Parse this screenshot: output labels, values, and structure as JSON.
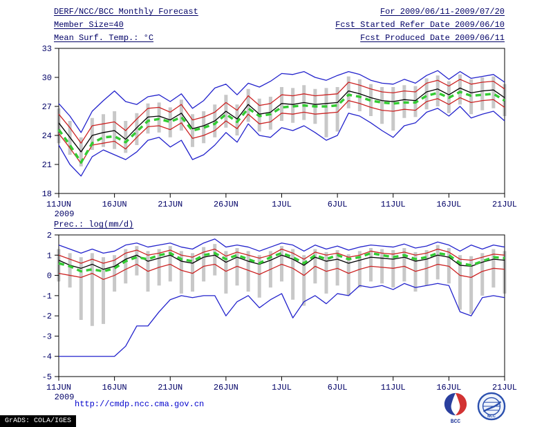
{
  "header": {
    "title": "DERF/NCC/BCC Monthly Forecast",
    "for_range": "For 2009/06/11-2009/07/20",
    "member_size": "Member Size=40",
    "ref_date": "Fcst Started Refer Date 2009/06/10",
    "produced_date": "Fcst Produced Date 2009/06/11"
  },
  "footer": {
    "url": "http://cmdp.ncc.cma.gov.cn",
    "grads_credit": "GrADS: COLA/IGES"
  },
  "logos": {
    "bcc_label": "BCC",
    "ncc_label": "NCC"
  },
  "colors": {
    "text": "#000066",
    "frame": "#000000",
    "envelope_blue": "#2222cc",
    "band_red": "#cc2222",
    "mean_black": "#000000",
    "reference_green": "#33cc33",
    "spread_gray": "#c8c8c8",
    "url_blue": "#0000cc"
  },
  "chart_data": [
    {
      "type": "line",
      "title": "Mean Surf. Temp.: °C",
      "ylim": [
        18,
        33
      ],
      "yticks": [
        18,
        21,
        24,
        27,
        30,
        33
      ],
      "n_points": 41,
      "xtick_indices": [
        0,
        5,
        10,
        15,
        20,
        25,
        30,
        35,
        40
      ],
      "xticklabels": [
        "11JUN",
        "16JUN",
        "21JUN",
        "26JUN",
        "1JUL",
        "6JUL",
        "11JUL",
        "16JUL",
        "21JUL"
      ],
      "x_year_label": "2009",
      "grid": false,
      "legend": "none",
      "bars": {
        "name": "ensemble-spread",
        "color": "#c8c8c8",
        "low": [
          23.2,
          22.0,
          20.8,
          22.5,
          22.8,
          22.6,
          22.2,
          23.0,
          24.2,
          24.3,
          23.8,
          24.5,
          22.8,
          23.2,
          23.8,
          24.8,
          24.0,
          25.4,
          24.4,
          24.6,
          25.5,
          25.3,
          25.6,
          25.2,
          23.8,
          24.4,
          26.8,
          26.5,
          26.0,
          25.2,
          24.5,
          25.8,
          25.9,
          26.7,
          27.0,
          26.3,
          27.2,
          26.2,
          26.6,
          26.8,
          26.0
        ],
        "high": [
          26.8,
          25.5,
          23.8,
          25.8,
          26.2,
          26.5,
          25.5,
          26.3,
          27.3,
          27.4,
          26.9,
          27.7,
          26.2,
          26.5,
          27.2,
          28.2,
          27.2,
          28.8,
          27.8,
          28.0,
          29.0,
          28.9,
          29.2,
          28.8,
          28.9,
          29.0,
          30.1,
          29.8,
          29.3,
          29.0,
          29.0,
          29.2,
          29.1,
          29.9,
          30.2,
          29.6,
          30.3,
          29.8,
          30.0,
          30.1,
          29.3
        ]
      },
      "series": [
        {
          "name": "upper-envelope",
          "color": "#2222cc",
          "width": 1.3,
          "values": [
            27.3,
            26.0,
            24.3,
            26.5,
            27.6,
            28.6,
            27.5,
            27.2,
            28.0,
            28.2,
            27.5,
            28.3,
            26.8,
            27.6,
            28.9,
            29.3,
            28.2,
            29.4,
            29.0,
            29.6,
            30.4,
            30.3,
            30.6,
            30.0,
            29.7,
            30.2,
            30.6,
            30.3,
            29.7,
            29.4,
            29.3,
            29.8,
            29.4,
            30.2,
            30.7,
            29.8,
            30.6,
            29.9,
            30.1,
            30.3,
            29.5
          ]
        },
        {
          "name": "lower-envelope",
          "color": "#2222cc",
          "width": 1.3,
          "values": [
            23.0,
            21.0,
            19.8,
            21.8,
            22.5,
            22.0,
            21.5,
            22.3,
            23.5,
            23.8,
            22.8,
            23.5,
            21.5,
            22.0,
            23.0,
            24.3,
            23.3,
            25.2,
            24.0,
            23.8,
            24.8,
            24.5,
            25.0,
            24.3,
            23.5,
            24.0,
            26.3,
            26.0,
            25.3,
            24.5,
            23.8,
            25.0,
            25.3,
            26.4,
            26.8,
            26.0,
            27.0,
            25.8,
            26.2,
            26.5,
            25.5
          ]
        },
        {
          "name": "upper-band",
          "color": "#cc2222",
          "width": 1.3,
          "values": [
            26.2,
            24.8,
            23.2,
            25.0,
            25.2,
            25.4,
            24.5,
            25.7,
            26.8,
            26.9,
            26.4,
            27.2,
            25.6,
            25.9,
            26.4,
            27.4,
            26.6,
            28.1,
            27.1,
            27.3,
            28.2,
            28.1,
            28.3,
            28.1,
            28.2,
            28.3,
            29.5,
            29.2,
            28.8,
            28.5,
            28.4,
            28.6,
            28.5,
            29.4,
            29.7,
            29.1,
            29.8,
            29.3,
            29.5,
            29.6,
            28.8
          ]
        },
        {
          "name": "lower-band",
          "color": "#cc2222",
          "width": 1.3,
          "values": [
            24.2,
            22.7,
            21.1,
            23.0,
            23.2,
            23.4,
            22.6,
            23.8,
            24.9,
            25.0,
            24.6,
            25.3,
            23.7,
            24.0,
            24.5,
            25.5,
            24.7,
            26.2,
            25.2,
            25.4,
            26.3,
            26.2,
            26.4,
            26.2,
            26.3,
            26.4,
            27.6,
            27.3,
            26.9,
            26.6,
            26.5,
            26.7,
            26.6,
            27.5,
            27.8,
            27.2,
            27.9,
            27.4,
            27.6,
            27.7,
            26.9
          ]
        },
        {
          "name": "ensemble-mean",
          "color": "#000000",
          "width": 1.3,
          "values": [
            25.3,
            23.8,
            22.3,
            24.0,
            24.3,
            24.5,
            23.6,
            24.8,
            25.9,
            26.0,
            25.6,
            26.3,
            24.7,
            25.0,
            25.5,
            26.5,
            25.7,
            27.2,
            26.2,
            26.4,
            27.3,
            27.2,
            27.4,
            27.2,
            27.3,
            27.4,
            28.6,
            28.3,
            27.9,
            27.6,
            27.5,
            27.7,
            27.6,
            28.5,
            28.8,
            28.2,
            28.9,
            28.4,
            28.6,
            28.7,
            27.9
          ]
        },
        {
          "name": "reference-dashed",
          "color": "#33cc33",
          "width": 3.5,
          "dash": "8 6",
          "values": [
            24.6,
            23.0,
            21.2,
            23.2,
            23.8,
            23.9,
            23.3,
            24.4,
            25.5,
            25.7,
            25.4,
            25.9,
            24.5,
            24.8,
            25.2,
            26.2,
            25.4,
            26.8,
            26.0,
            26.2,
            26.9,
            27.0,
            27.1,
            27.0,
            27.0,
            27.1,
            28.2,
            28.0,
            27.6,
            27.4,
            27.3,
            27.4,
            27.4,
            28.1,
            28.4,
            27.9,
            28.5,
            28.1,
            28.2,
            28.3,
            27.6
          ]
        }
      ]
    },
    {
      "type": "line",
      "title": "Prec.: log(mm/d)",
      "ylim": [
        -5,
        2
      ],
      "yticks": [
        -5,
        -4,
        -3,
        -2,
        -1,
        0,
        1,
        2
      ],
      "n_points": 41,
      "xtick_indices": [
        0,
        5,
        10,
        15,
        20,
        25,
        30,
        35,
        40
      ],
      "xticklabels": [
        "11JUN",
        "16JUN",
        "21JUN",
        "26JUN",
        "1JUL",
        "6JUL",
        "11JUL",
        "16JUL",
        "21JUL"
      ],
      "x_year_label": "2009",
      "grid": false,
      "legend": "none",
      "bars": {
        "name": "ensemble-spread",
        "color": "#c8c8c8",
        "low": [
          -0.3,
          -0.6,
          -2.2,
          -2.5,
          -2.4,
          -0.8,
          -0.4,
          0.0,
          -0.8,
          -0.5,
          -0.3,
          -0.9,
          -0.8,
          -0.3,
          0.0,
          -0.9,
          -0.5,
          -0.8,
          -1.1,
          -0.6,
          -0.3,
          -1.2,
          -1.5,
          -0.4,
          -0.9,
          -0.5,
          -1.0,
          -0.6,
          -0.3,
          -0.4,
          -0.6,
          -0.3,
          -0.8,
          -0.5,
          -0.2,
          -0.4,
          -1.7,
          -1.9,
          -1.0,
          -0.6,
          -0.9
        ],
        "high": [
          1.3,
          1.1,
          0.9,
          1.1,
          0.9,
          1.0,
          1.3,
          1.45,
          1.2,
          1.3,
          1.45,
          1.2,
          1.1,
          1.4,
          1.55,
          1.2,
          1.35,
          1.2,
          1.0,
          1.2,
          1.45,
          1.3,
          1.0,
          1.3,
          1.15,
          1.25,
          1.05,
          1.2,
          1.35,
          1.3,
          1.25,
          1.35,
          1.15,
          1.25,
          1.5,
          1.35,
          1.0,
          0.95,
          1.1,
          1.3,
          1.2
        ]
      },
      "series": [
        {
          "name": "upper-envelope",
          "color": "#2222cc",
          "width": 1.3,
          "values": [
            1.5,
            1.3,
            1.1,
            1.3,
            1.1,
            1.2,
            1.5,
            1.6,
            1.4,
            1.5,
            1.6,
            1.4,
            1.3,
            1.6,
            1.8,
            1.4,
            1.5,
            1.4,
            1.2,
            1.4,
            1.6,
            1.5,
            1.2,
            1.5,
            1.3,
            1.45,
            1.25,
            1.4,
            1.5,
            1.45,
            1.4,
            1.55,
            1.35,
            1.45,
            1.65,
            1.5,
            1.2,
            1.5,
            1.3,
            1.5,
            1.4
          ]
        },
        {
          "name": "lower-envelope",
          "color": "#2222cc",
          "width": 1.3,
          "values": [
            -4.0,
            -4.0,
            -4.0,
            -4.0,
            -4.0,
            -4.0,
            -3.5,
            -2.5,
            -2.5,
            -1.8,
            -1.2,
            -1.0,
            -1.1,
            -1.0,
            -1.0,
            -2.0,
            -1.3,
            -1.0,
            -1.6,
            -1.2,
            -0.9,
            -2.1,
            -1.3,
            -1.0,
            -1.4,
            -0.9,
            -1.0,
            -0.5,
            -0.6,
            -0.5,
            -0.7,
            -0.4,
            -0.6,
            -0.5,
            -0.4,
            -0.5,
            -1.8,
            -2.0,
            -1.1,
            -1.0,
            -1.1
          ]
        },
        {
          "name": "upper-band",
          "color": "#cc2222",
          "width": 1.3,
          "values": [
            1.0,
            0.8,
            0.6,
            0.8,
            0.6,
            0.75,
            1.1,
            1.25,
            1.0,
            1.1,
            1.25,
            1.0,
            0.9,
            1.15,
            1.3,
            0.95,
            1.15,
            1.0,
            0.85,
            1.0,
            1.3,
            1.1,
            0.8,
            1.15,
            1.0,
            1.1,
            0.9,
            1.0,
            1.2,
            1.1,
            1.05,
            1.15,
            1.0,
            1.1,
            1.3,
            1.15,
            0.8,
            0.75,
            0.9,
            1.05,
            1.0
          ]
        },
        {
          "name": "lower-band",
          "color": "#cc2222",
          "width": 1.3,
          "values": [
            0.1,
            0.0,
            -0.1,
            0.1,
            -0.2,
            0.0,
            0.3,
            0.55,
            0.2,
            0.4,
            0.55,
            0.25,
            0.1,
            0.45,
            0.55,
            0.2,
            0.45,
            0.25,
            0.05,
            0.3,
            0.55,
            0.35,
            0.0,
            0.45,
            0.2,
            0.35,
            0.1,
            0.3,
            0.45,
            0.4,
            0.35,
            0.45,
            0.2,
            0.35,
            0.55,
            0.45,
            0.0,
            -0.1,
            0.2,
            0.35,
            0.3
          ]
        },
        {
          "name": "ensemble-mean",
          "color": "#000000",
          "width": 1.3,
          "values": [
            0.75,
            0.5,
            0.35,
            0.55,
            0.3,
            0.45,
            0.8,
            1.0,
            0.7,
            0.85,
            1.0,
            0.7,
            0.6,
            0.9,
            1.0,
            0.65,
            0.9,
            0.7,
            0.55,
            0.75,
            1.0,
            0.8,
            0.5,
            0.9,
            0.7,
            0.8,
            0.6,
            0.75,
            0.9,
            0.85,
            0.8,
            0.9,
            0.7,
            0.8,
            1.0,
            0.9,
            0.5,
            0.45,
            0.65,
            0.8,
            0.75
          ]
        },
        {
          "name": "reference-dashed",
          "color": "#33cc33",
          "width": 3.5,
          "dash": "8 6",
          "values": [
            0.6,
            0.45,
            0.2,
            0.3,
            0.2,
            0.35,
            0.7,
            0.9,
            0.8,
            1.0,
            1.1,
            0.8,
            0.7,
            1.0,
            1.1,
            0.8,
            1.0,
            0.8,
            0.6,
            0.9,
            1.1,
            0.9,
            0.6,
            1.0,
            0.8,
            1.0,
            0.8,
            0.9,
            1.1,
            1.0,
            0.9,
            1.0,
            0.8,
            0.9,
            1.1,
            1.0,
            0.6,
            0.5,
            0.7,
            0.9,
            0.85
          ]
        }
      ]
    }
  ]
}
